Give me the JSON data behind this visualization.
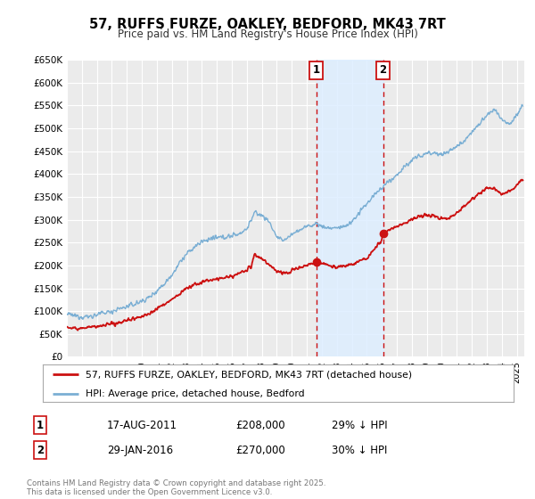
{
  "title": "57, RUFFS FURZE, OAKLEY, BEDFORD, MK43 7RT",
  "subtitle": "Price paid vs. HM Land Registry's House Price Index (HPI)",
  "ylim": [
    0,
    650000
  ],
  "xlim_start": 1995.0,
  "xlim_end": 2025.5,
  "background_color": "#ffffff",
  "plot_bg_color": "#ebebeb",
  "grid_color": "#ffffff",
  "hpi_color": "#7bafd4",
  "house_color": "#cc1111",
  "vline_color": "#cc1111",
  "shading_color": "#ddeeff",
  "marker1_date": 2011.63,
  "marker2_date": 2016.08,
  "marker1_price": 208000,
  "marker2_price": 270000,
  "legend_label1": "57, RUFFS FURZE, OAKLEY, BEDFORD, MK43 7RT (detached house)",
  "legend_label2": "HPI: Average price, detached house, Bedford",
  "table_row1": [
    "1",
    "17-AUG-2011",
    "£208,000",
    "29% ↓ HPI"
  ],
  "table_row2": [
    "2",
    "29-JAN-2016",
    "£270,000",
    "30% ↓ HPI"
  ],
  "footer": "Contains HM Land Registry data © Crown copyright and database right 2025.\nThis data is licensed under the Open Government Licence v3.0.",
  "ytick_labels": [
    "£0",
    "£50K",
    "£100K",
    "£150K",
    "£200K",
    "£250K",
    "£300K",
    "£350K",
    "£400K",
    "£450K",
    "£500K",
    "£550K",
    "£600K",
    "£650K"
  ],
  "ytick_values": [
    0,
    50000,
    100000,
    150000,
    200000,
    250000,
    300000,
    350000,
    400000,
    450000,
    500000,
    550000,
    600000,
    650000
  ]
}
